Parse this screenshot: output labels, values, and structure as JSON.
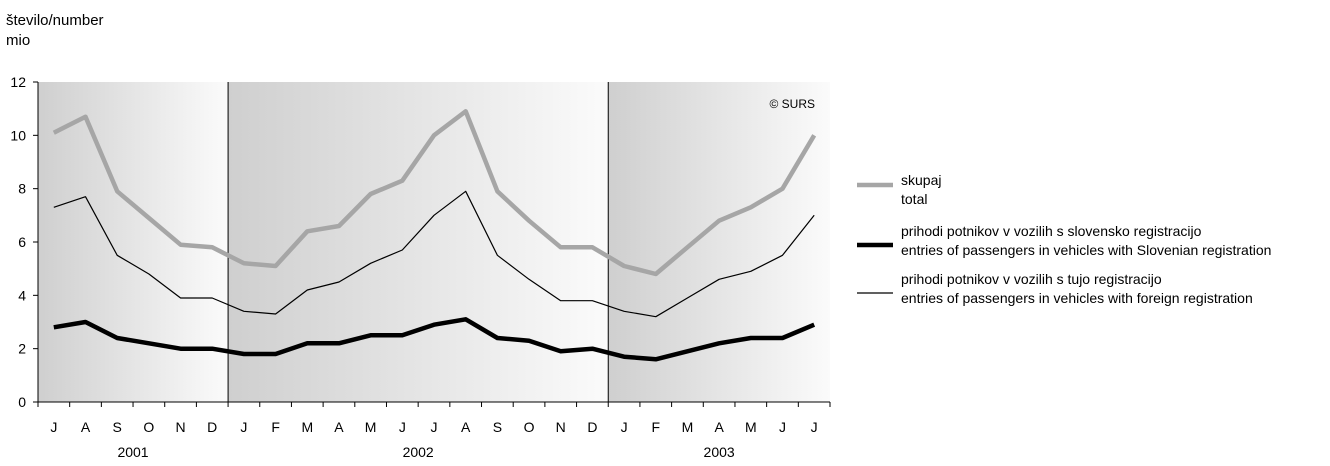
{
  "chart_data": {
    "type": "line",
    "title": "",
    "ylabel": "število/number",
    "yunit": "mio",
    "ylim": [
      0,
      12
    ],
    "yticks": [
      "0",
      "2",
      "4",
      "6",
      "8",
      "10",
      "12"
    ],
    "categories": [
      "J",
      "A",
      "S",
      "O",
      "N",
      "D",
      "J",
      "F",
      "M",
      "A",
      "M",
      "J",
      "J",
      "A",
      "S",
      "O",
      "N",
      "D",
      "J",
      "F",
      "M",
      "A",
      "M",
      "J",
      "J"
    ],
    "years": [
      {
        "label": "2001",
        "start": 0,
        "end": 5
      },
      {
        "label": "2002",
        "start": 6,
        "end": 17
      },
      {
        "label": "2003",
        "start": 18,
        "end": 24
      }
    ],
    "annotation": "© SURS",
    "legend_position": "right",
    "series": [
      {
        "name": "skupaj",
        "name_en": "total",
        "color": "#a6a6a6",
        "style": "thick-gray",
        "values": [
          10.1,
          10.7,
          7.9,
          6.9,
          5.9,
          5.8,
          5.2,
          5.1,
          6.4,
          6.6,
          7.8,
          8.3,
          10.0,
          10.9,
          7.9,
          6.8,
          5.8,
          5.8,
          5.1,
          4.8,
          5.8,
          6.8,
          7.3,
          8.0,
          10.0
        ]
      },
      {
        "name": "prihodi potnikov v vozilih s slovensko registracijo",
        "name_en": "entries of passengers in vehicles with Slovenian registration",
        "color": "#000000",
        "style": "thick-black",
        "values": [
          2.8,
          3.0,
          2.4,
          2.2,
          2.0,
          2.0,
          1.8,
          1.8,
          2.2,
          2.2,
          2.5,
          2.5,
          2.9,
          3.1,
          2.4,
          2.3,
          1.9,
          2.0,
          1.7,
          1.6,
          1.9,
          2.2,
          2.4,
          2.4,
          2.9
        ]
      },
      {
        "name": "prihodi potnikov v vozilih s tujo registracijo",
        "name_en": "entries of passengers in vehicles with foreign registration",
        "color": "#000000",
        "style": "thin-black",
        "values": [
          7.3,
          7.7,
          5.5,
          4.8,
          3.9,
          3.9,
          3.4,
          3.3,
          4.2,
          4.5,
          5.2,
          5.7,
          7.0,
          7.9,
          5.5,
          4.6,
          3.8,
          3.8,
          3.4,
          3.2,
          3.9,
          4.6,
          4.9,
          5.5,
          7.0
        ]
      }
    ]
  }
}
